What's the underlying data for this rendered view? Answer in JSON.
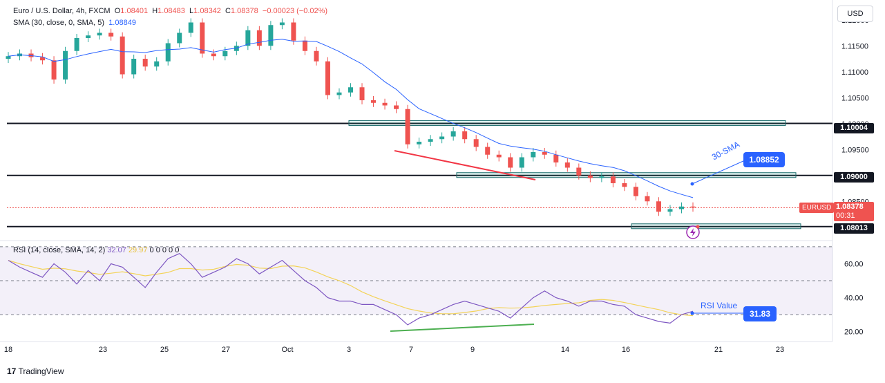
{
  "header": {
    "symbol": "Euro / U.S. Dollar, 4h, FXCM",
    "o_label": "O",
    "o_value": "1.08401",
    "h_label": "H",
    "h_value": "1.08483",
    "l_label": "L",
    "l_value": "1.08342",
    "c_label": "C",
    "c_value": "1.08378",
    "change": "−0.00023 (−0.02%)",
    "sma_label": "SMA (30, close, 0, SMA, 5)",
    "sma_value": "1.08849"
  },
  "currency": "USD",
  "price_labels": {
    "level1": "1.10004",
    "level2": "1.09000",
    "level3": "1.08013",
    "symbol": "EURUSD",
    "last_price": "1.08378",
    "countdown": "00:31"
  },
  "annotations": {
    "sma_text": "30-SMA",
    "sma_value": "1.08852",
    "rsi_text": "RSI Value",
    "rsi_value": "31.83"
  },
  "rsi_header": {
    "label": "RSI (14, close, SMA, 14, 2)",
    "rsi": "32.07",
    "sma": "29.97",
    "zeros": "0  0  0  0  0"
  },
  "branding": "TradingView",
  "colors": {
    "up": "#26a69a",
    "down": "#ef5350",
    "sma": "#2962ff",
    "rsi": "#7e57c2",
    "rsi_ma": "#f3d358"
  },
  "chart_data": [
    {
      "type": "candlestick",
      "title": "Euro / U.S. Dollar, 4h, FXCM",
      "x_ticks": [
        "18",
        "23",
        "25",
        "27",
        "Oct",
        "3",
        "7",
        "9",
        "14",
        "16",
        "21",
        "23"
      ],
      "y_ticks": [
        "1.12000",
        "1.11500",
        "1.11000",
        "1.10500",
        "1.10000",
        "1.09500",
        "1.09000",
        "1.08500"
      ],
      "ylim": [
        1.0785,
        1.1225
      ],
      "horizontal_levels": [
        1.10004,
        1.09,
        1.08013
      ],
      "sma_value": 1.08852,
      "last_price": 1.08378,
      "close_path": [
        1.113,
        1.1135,
        1.1128,
        1.1122,
        1.1085,
        1.114,
        1.1165,
        1.117,
        1.1175,
        1.1168,
        1.1095,
        1.1125,
        1.111,
        1.112,
        1.1155,
        1.1175,
        1.1195,
        1.1135,
        1.113,
        1.114,
        1.115,
        1.118,
        1.115,
        1.119,
        1.1195,
        1.116,
        1.114,
        1.112,
        1.1055,
        1.106,
        1.107,
        1.1045,
        1.104,
        1.1035,
        1.1028,
        1.096,
        1.0965,
        1.097,
        1.0975,
        1.0985,
        1.097,
        1.0955,
        1.094,
        1.0935,
        1.0915,
        1.0935,
        1.0945,
        1.094,
        1.0925,
        1.0915,
        1.09,
        1.0895,
        1.0898,
        1.0885,
        1.0878,
        1.086,
        1.085,
        1.083,
        1.0835,
        1.084,
        1.0838
      ]
    },
    {
      "type": "line",
      "title": "RSI (14, close, SMA, 14, 2)",
      "y_ticks": [
        "60.00",
        "40.00",
        "20.00"
      ],
      "ylim": [
        15,
        72
      ],
      "bands": [
        70,
        50,
        30
      ],
      "rsi_last": 32.07,
      "rsi_sma_last": 29.97,
      "rsi_value_label": 31.83,
      "rsi_path": [
        62,
        58,
        55,
        52,
        60,
        55,
        48,
        56,
        50,
        60,
        58,
        52,
        46,
        55,
        63,
        66,
        60,
        52,
        55,
        58,
        63,
        60,
        54,
        58,
        62,
        56,
        50,
        46,
        40,
        38,
        38,
        36,
        36,
        33,
        30,
        24,
        28,
        30,
        33,
        36,
        38,
        36,
        34,
        32,
        28,
        34,
        40,
        44,
        40,
        38,
        35,
        38,
        38,
        36,
        35,
        30,
        28,
        26,
        25,
        30,
        32
      ]
    }
  ]
}
